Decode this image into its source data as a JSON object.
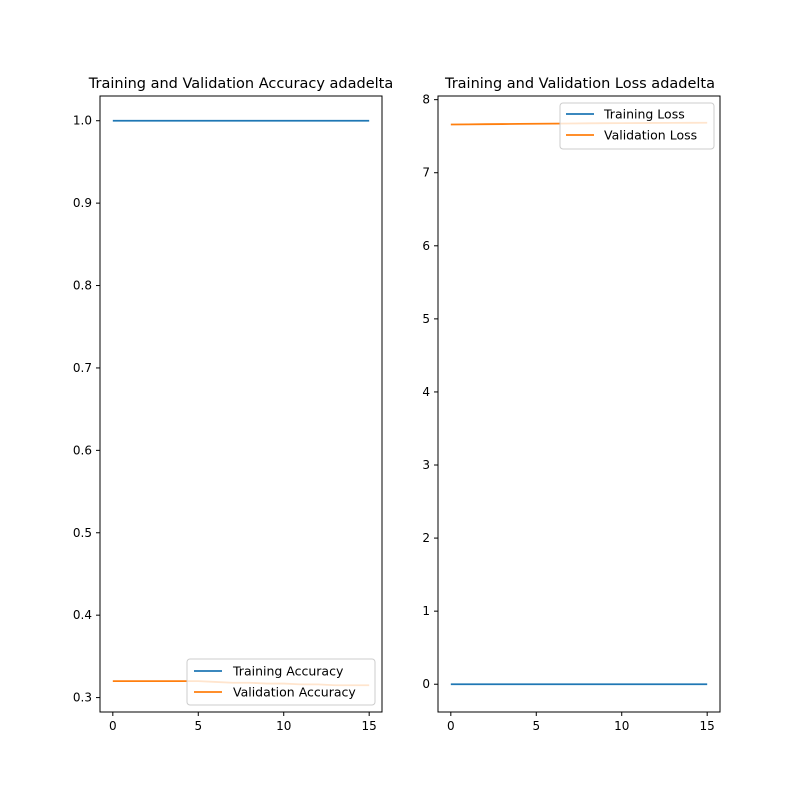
{
  "chart_data": [
    {
      "type": "line",
      "title": "Training and Validation Accuracy adadelta",
      "xlabel": "",
      "ylabel": "",
      "xlim": [
        -0.75,
        15.75
      ],
      "ylim": [
        0.2825,
        1.03
      ],
      "xticks": [
        0,
        5,
        10,
        15
      ],
      "xtick_labels": [
        "0",
        "5",
        "10",
        "15"
      ],
      "yticks": [
        0.3,
        0.4,
        0.5,
        0.6,
        0.7,
        0.8,
        0.9,
        1.0
      ],
      "ytick_labels": [
        "0.3",
        "0.4",
        "0.5",
        "0.6",
        "0.7",
        "0.8",
        "0.9",
        "1.0"
      ],
      "grid": false,
      "legend_position": "lower-right",
      "series": [
        {
          "name": "Training Accuracy",
          "color": "#1f77b4",
          "x": [
            0,
            1,
            2,
            3,
            4,
            5,
            6,
            7,
            8,
            9,
            10,
            11,
            12,
            13,
            14,
            15
          ],
          "y": [
            1.0,
            1.0,
            1.0,
            1.0,
            1.0,
            1.0,
            1.0,
            1.0,
            1.0,
            1.0,
            1.0,
            1.0,
            1.0,
            1.0,
            1.0,
            1.0
          ]
        },
        {
          "name": "Validation Accuracy",
          "color": "#ff7f0e",
          "x": [
            0,
            1,
            2,
            3,
            4,
            5,
            6,
            7,
            8,
            9,
            10,
            11,
            12,
            13,
            14,
            15
          ],
          "y": [
            0.32,
            0.32,
            0.32,
            0.32,
            0.32,
            0.32,
            0.319,
            0.318,
            0.318,
            0.317,
            0.317,
            0.316,
            0.316,
            0.315,
            0.315,
            0.315
          ]
        }
      ]
    },
    {
      "type": "line",
      "title": "Training and Validation Loss adadelta",
      "xlabel": "",
      "ylabel": "",
      "xlim": [
        -0.75,
        15.75
      ],
      "ylim": [
        -0.38,
        8.05
      ],
      "xticks": [
        0,
        5,
        10,
        15
      ],
      "xtick_labels": [
        "0",
        "5",
        "10",
        "15"
      ],
      "yticks": [
        0,
        1,
        2,
        3,
        4,
        5,
        6,
        7,
        8
      ],
      "ytick_labels": [
        "0",
        "1",
        "2",
        "3",
        "4",
        "5",
        "6",
        "7",
        "8"
      ],
      "grid": false,
      "legend_position": "upper-right",
      "series": [
        {
          "name": "Training Loss",
          "color": "#1f77b4",
          "x": [
            0,
            1,
            2,
            3,
            4,
            5,
            6,
            7,
            8,
            9,
            10,
            11,
            12,
            13,
            14,
            15
          ],
          "y": [
            0.0,
            0.0,
            0.0,
            0.0,
            0.0,
            0.0,
            0.0,
            0.0,
            0.0,
            0.0,
            0.0,
            0.0,
            0.0,
            0.0,
            0.0,
            0.0
          ]
        },
        {
          "name": "Validation Loss",
          "color": "#ff7f0e",
          "x": [
            0,
            1,
            2,
            3,
            4,
            5,
            6,
            7,
            8,
            9,
            10,
            11,
            12,
            13,
            14,
            15
          ],
          "y": [
            7.66,
            7.662,
            7.664,
            7.666,
            7.668,
            7.67,
            7.672,
            7.674,
            7.676,
            7.678,
            7.679,
            7.68,
            7.681,
            7.682,
            7.683,
            7.684
          ]
        }
      ]
    }
  ]
}
